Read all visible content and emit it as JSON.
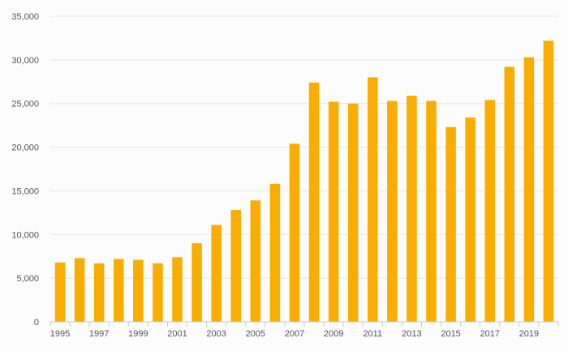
{
  "chart_data": {
    "type": "bar",
    "title": "",
    "xlabel": "",
    "ylabel": "",
    "categories": [
      "1995",
      "1996",
      "1997",
      "1998",
      "1999",
      "2000",
      "2001",
      "2002",
      "2003",
      "2004",
      "2005",
      "2006",
      "2007",
      "2008",
      "2009",
      "2010",
      "2011",
      "2012",
      "2013",
      "2014",
      "2015",
      "2016",
      "2017",
      "2018",
      "2019",
      "2020"
    ],
    "x_tick_labels": [
      "1995",
      "1997",
      "1999",
      "2001",
      "2003",
      "2005",
      "2007",
      "2009",
      "2011",
      "2013",
      "2015",
      "2017",
      "2019"
    ],
    "values": [
      6800,
      7300,
      6700,
      7200,
      7100,
      6700,
      7400,
      9000,
      11100,
      12800,
      13900,
      15800,
      20400,
      27400,
      25200,
      25000,
      28000,
      25300,
      25900,
      25300,
      22300,
      23400,
      25400,
      29200,
      30300,
      32200
    ],
    "ylim": [
      0,
      35000
    ],
    "y_ticks": [
      0,
      5000,
      10000,
      15000,
      20000,
      25000,
      30000,
      35000
    ],
    "y_tick_labels": [
      "0",
      "5,000",
      "10,000",
      "15,000",
      "20,000",
      "25,000",
      "30,000",
      "35,000"
    ],
    "grid": true,
    "bar_color": "#f9ad00"
  }
}
